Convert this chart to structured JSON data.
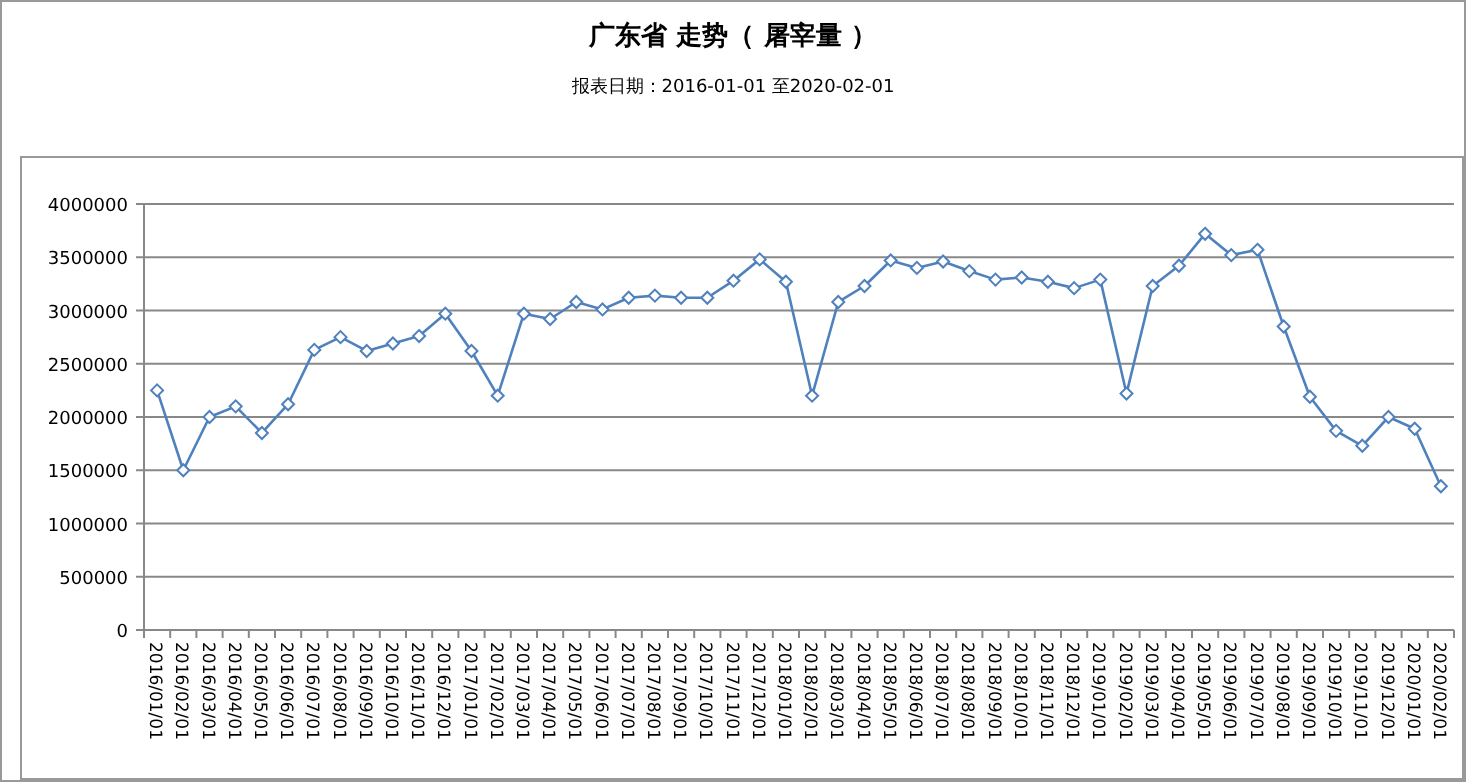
{
  "chart_data": {
    "type": "line",
    "title": "广东省 走势（ 屠宰量 ）",
    "subtitle": "报表日期：2016-01-01 至2020-02-01",
    "categories": [
      "2016/01/01",
      "2016/02/01",
      "2016/03/01",
      "2016/04/01",
      "2016/05/01",
      "2016/06/01",
      "2016/07/01",
      "2016/08/01",
      "2016/09/01",
      "2016/10/01",
      "2016/11/01",
      "2016/12/01",
      "2017/01/01",
      "2017/02/01",
      "2017/03/01",
      "2017/04/01",
      "2017/05/01",
      "2017/06/01",
      "2017/07/01",
      "2017/08/01",
      "2017/09/01",
      "2017/10/01",
      "2017/11/01",
      "2017/12/01",
      "2018/01/01",
      "2018/02/01",
      "2018/03/01",
      "2018/04/01",
      "2018/05/01",
      "2018/06/01",
      "2018/07/01",
      "2018/08/01",
      "2018/09/01",
      "2018/10/01",
      "2018/11/01",
      "2018/12/01",
      "2019/01/01",
      "2019/02/01",
      "2019/03/01",
      "2019/04/01",
      "2019/05/01",
      "2019/06/01",
      "2019/07/01",
      "2019/08/01",
      "2019/09/01",
      "2019/10/01",
      "2019/11/01",
      "2019/12/01",
      "2020/01/01",
      "2020/02/01"
    ],
    "series": [
      {
        "color": "#4f81bd",
        "values": [
          2250000,
          1500000,
          2000000,
          2100000,
          1850000,
          2120000,
          2630000,
          2750000,
          2620000,
          2690000,
          2760000,
          2970000,
          2620000,
          2200000,
          2970000,
          2920000,
          3080000,
          3010000,
          3120000,
          3140000,
          3120000,
          3120000,
          3280000,
          3480000,
          3270000,
          2200000,
          3080000,
          3230000,
          3470000,
          3400000,
          3460000,
          3370000,
          3290000,
          3310000,
          3270000,
          3210000,
          3290000,
          2220000,
          3230000,
          3420000,
          3720000,
          3520000,
          3570000,
          2850000,
          2190000,
          1870000,
          1730000,
          2000000,
          1890000,
          1350000
        ]
      }
    ],
    "ylim": [
      0,
      4000000
    ],
    "yticks": [
      0,
      500000,
      1000000,
      1500000,
      2000000,
      2500000,
      3000000,
      3500000,
      4000000
    ],
    "grid": "y",
    "marker": "diamond"
  }
}
